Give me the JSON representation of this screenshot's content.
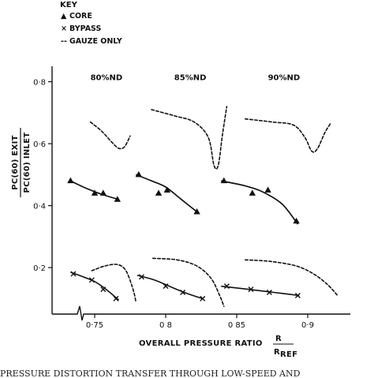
{
  "chart_data": {
    "type": "line",
    "legend": {
      "title": "KEY",
      "placement": "top-left",
      "items": [
        {
          "marker": "▲",
          "label": "CORE"
        },
        {
          "marker": "×",
          "label": "BYPASS"
        },
        {
          "marker": "--",
          "label": "GAUZE ONLY"
        }
      ]
    },
    "ylabel": {
      "numerator": "PC(60) EXIT",
      "denominator": "PC(60) INLET"
    },
    "xlabel": {
      "text": "OVERALL PRESSURE RATIO",
      "num": "R",
      "den": "R",
      "den_sub": "REF"
    },
    "xlim": [
      0.72,
      0.93
    ],
    "ylim": [
      0.05,
      0.86
    ],
    "x_ticks": [
      {
        "value": 0.75,
        "label": "0·75"
      },
      {
        "value": 0.8,
        "label": "0 8"
      },
      {
        "value": 0.85,
        "label": "0 85"
      },
      {
        "value": 0.9,
        "label": "0·9"
      }
    ],
    "y_ticks": [
      {
        "value": 0.2,
        "label": "0·2"
      },
      {
        "value": 0.4,
        "label": "0·4"
      },
      {
        "value": 0.6,
        "label": "0·6"
      },
      {
        "value": 0.8,
        "label": "0·8"
      }
    ],
    "grid": false,
    "speed_labels": [
      {
        "x": 0.747,
        "y": 0.805,
        "text": "80%ND"
      },
      {
        "x": 0.806,
        "y": 0.805,
        "text": "85%ND"
      },
      {
        "x": 0.872,
        "y": 0.805,
        "text": "90%ND"
      }
    ],
    "groups": [
      {
        "label": "80%ND",
        "core": {
          "points": [
            [
              0.733,
              0.48
            ],
            [
              0.75,
              0.44
            ],
            [
              0.756,
              0.44
            ],
            [
              0.766,
              0.42
            ]
          ],
          "curve": [
            [
              0.733,
              0.48
            ],
            [
              0.742,
              0.46
            ],
            [
              0.75,
              0.445
            ],
            [
              0.758,
              0.432
            ],
            [
              0.767,
              0.42
            ]
          ]
        },
        "bypass": {
          "points": [
            [
              0.735,
              0.18
            ],
            [
              0.748,
              0.16
            ],
            [
              0.756,
              0.13
            ],
            [
              0.765,
              0.1
            ]
          ],
          "curve": [
            [
              0.733,
              0.185
            ],
            [
              0.742,
              0.17
            ],
            [
              0.75,
              0.155
            ],
            [
              0.758,
              0.13
            ],
            [
              0.767,
              0.095
            ]
          ]
        },
        "gauze": [
          [
            [
              0.747,
              0.67
            ],
            [
              0.755,
              0.64
            ],
            [
              0.762,
              0.605
            ],
            [
              0.767,
              0.585
            ],
            [
              0.771,
              0.59
            ],
            [
              0.775,
              0.625
            ]
          ],
          [
            [
              0.748,
              0.19
            ],
            [
              0.757,
              0.205
            ],
            [
              0.766,
              0.21
            ],
            [
              0.772,
              0.19
            ],
            [
              0.777,
              0.13
            ],
            [
              0.779,
              0.09
            ]
          ]
        ]
      },
      {
        "label": "85%ND",
        "core": {
          "points": [
            [
              0.781,
              0.5
            ],
            [
              0.795,
              0.44
            ],
            [
              0.801,
              0.45
            ],
            [
              0.822,
              0.38
            ]
          ],
          "curve": [
            [
              0.779,
              0.5
            ],
            [
              0.79,
              0.48
            ],
            [
              0.8,
              0.46
            ],
            [
              0.811,
              0.42
            ],
            [
              0.822,
              0.38
            ]
          ]
        },
        "bypass": {
          "points": [
            [
              0.783,
              0.17
            ],
            [
              0.8,
              0.14
            ],
            [
              0.812,
              0.12
            ],
            [
              0.826,
              0.1
            ]
          ],
          "curve": [
            [
              0.78,
              0.175
            ],
            [
              0.792,
              0.16
            ],
            [
              0.805,
              0.135
            ],
            [
              0.816,
              0.115
            ],
            [
              0.826,
              0.1
            ]
          ]
        },
        "gauze": [
          [
            [
              0.79,
              0.71
            ],
            [
              0.806,
              0.69
            ],
            [
              0.82,
              0.67
            ],
            [
              0.83,
              0.62
            ],
            [
              0.834,
              0.53
            ],
            [
              0.837,
              0.53
            ],
            [
              0.84,
              0.63
            ],
            [
              0.843,
              0.72
            ]
          ],
          [
            [
              0.791,
              0.23
            ],
            [
              0.808,
              0.225
            ],
            [
              0.822,
              0.205
            ],
            [
              0.832,
              0.165
            ],
            [
              0.838,
              0.11
            ],
            [
              0.841,
              0.075
            ]
          ]
        ]
      },
      {
        "label": "90%ND",
        "core": {
          "points": [
            [
              0.841,
              0.48
            ],
            [
              0.861,
              0.44
            ],
            [
              0.872,
              0.45
            ],
            [
              0.892,
              0.35
            ]
          ],
          "curve": [
            [
              0.839,
              0.48
            ],
            [
              0.855,
              0.465
            ],
            [
              0.868,
              0.445
            ],
            [
              0.882,
              0.405
            ],
            [
              0.893,
              0.34
            ]
          ]
        },
        "bypass": {
          "points": [
            [
              0.843,
              0.14
            ],
            [
              0.86,
              0.13
            ],
            [
              0.873,
              0.12
            ],
            [
              0.893,
              0.11
            ]
          ],
          "curve": [
            [
              0.839,
              0.14
            ],
            [
              0.858,
              0.13
            ],
            [
              0.876,
              0.12
            ],
            [
              0.894,
              0.11
            ]
          ]
        },
        "gauze": [
          [
            [
              0.856,
              0.68
            ],
            [
              0.875,
              0.67
            ],
            [
              0.89,
              0.66
            ],
            [
              0.898,
              0.62
            ],
            [
              0.903,
              0.575
            ],
            [
              0.907,
              0.585
            ],
            [
              0.912,
              0.635
            ],
            [
              0.916,
              0.665
            ]
          ],
          [
            [
              0.856,
              0.225
            ],
            [
              0.874,
              0.22
            ],
            [
              0.892,
              0.205
            ],
            [
              0.904,
              0.18
            ],
            [
              0.914,
              0.145
            ],
            [
              0.921,
              0.11
            ]
          ]
        ]
      }
    ],
    "caption": "PRESSURE DISTORTION TRANSFER THROUGH LOW-SPEED AND"
  }
}
